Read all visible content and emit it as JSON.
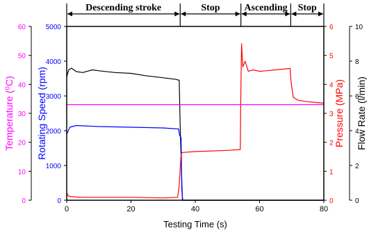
{
  "chart_data": {
    "type": "line",
    "xlabel": "Testing Time (s)",
    "xlim": [
      0,
      80
    ],
    "x_ticks": [
      "0",
      "20",
      "40",
      "60",
      "80"
    ],
    "phases": [
      {
        "label": "Descending stroke",
        "start": 0,
        "end": 35.3
      },
      {
        "label": "Stop",
        "start": 35.3,
        "end": 54.2
      },
      {
        "label": "Ascending",
        "start": 54.2,
        "end": 69.7
      },
      {
        "label": "Stop",
        "start": 69.7,
        "end": 80
      }
    ],
    "axes": {
      "temperature": {
        "label": "Temperature (⁰C)",
        "color": "#ff00ff",
        "range": [
          0,
          60
        ],
        "ticks": [
          "0",
          "10",
          "20",
          "30",
          "40",
          "50",
          "60"
        ]
      },
      "speed": {
        "label": "Rotating Speed (rpm)",
        "color": "#0000ff",
        "range": [
          0,
          5000
        ],
        "ticks": [
          "0",
          "1000",
          "2000",
          "3000",
          "4000",
          "5000"
        ]
      },
      "pressure": {
        "label": "Pressure (MPa)",
        "color": "#ff0000",
        "range": [
          0,
          6
        ],
        "ticks": [
          "0",
          "1",
          "2",
          "3",
          "4",
          "5",
          "6"
        ]
      },
      "flow": {
        "label": "Flow Rate (l/min)",
        "color": "#000000",
        "range": [
          0,
          10
        ],
        "ticks": [
          "0",
          "2",
          "4",
          "6",
          "8",
          "10"
        ]
      }
    },
    "series": [
      {
        "axis": "flow",
        "color": "#000000",
        "x": [
          0,
          0.6,
          1.5,
          3,
          5,
          8,
          10,
          15,
          20,
          25,
          30,
          34,
          35,
          35.3,
          35.5,
          36,
          80
        ],
        "y": [
          7.1,
          7.5,
          7.6,
          7.4,
          7.35,
          7.5,
          7.45,
          7.35,
          7.3,
          7.15,
          7.05,
          6.95,
          6.9,
          4.2,
          3.0,
          0,
          0
        ]
      },
      {
        "axis": "speed",
        "color": "#0000ff",
        "x": [
          0,
          1,
          3,
          10,
          20,
          30,
          34.8,
          35.2,
          35.6,
          35.8,
          36.1,
          80
        ],
        "y": [
          1900,
          2100,
          2150,
          2120,
          2100,
          2080,
          2050,
          1850,
          1800,
          300,
          0,
          0
        ]
      },
      {
        "axis": "pressure",
        "color": "#ff0000",
        "x": [
          0,
          0.5,
          1.5,
          5,
          10,
          20,
          30,
          34.5,
          35,
          35.6,
          36,
          40,
          50,
          54,
          54.1,
          54.4,
          54.8,
          55.5,
          56.5,
          58,
          60,
          65,
          69.5,
          69.8,
          70.5,
          72,
          75,
          80
        ],
        "y": [
          0.25,
          0.15,
          0.12,
          0.1,
          0.1,
          0.1,
          0.08,
          0.1,
          0.5,
          1.6,
          1.65,
          1.68,
          1.72,
          1.75,
          3.0,
          5.4,
          4.6,
          4.8,
          4.45,
          4.5,
          4.45,
          4.5,
          4.55,
          4.1,
          3.55,
          3.45,
          3.4,
          3.35
        ]
      },
      {
        "axis": "temperature",
        "color": "#ff00ff",
        "x": [
          0,
          80
        ],
        "y": [
          33,
          33
        ]
      }
    ]
  }
}
